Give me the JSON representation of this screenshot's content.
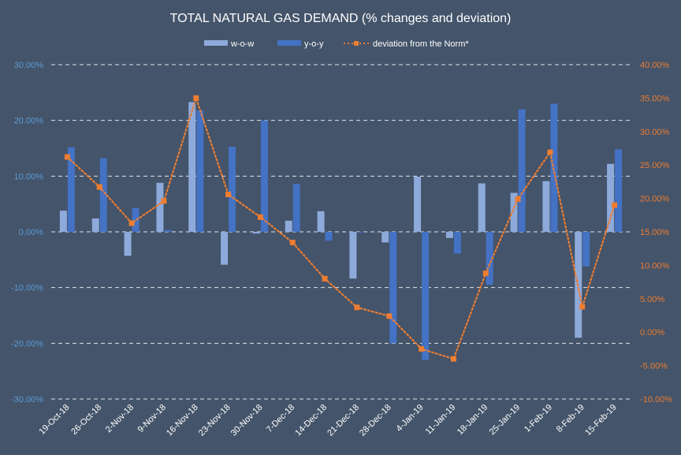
{
  "chart_data": {
    "type": "bar",
    "title": "TOTAL NATURAL GAS DEMAND (% changes and deviation)",
    "categories": [
      "19-Oct-18",
      "26-Oct-18",
      "2-Nov-18",
      "9-Nov-18",
      "16-Nov-18",
      "23-Nov-18",
      "30-Nov-18",
      "7-Dec-18",
      "14-Dec-18",
      "21-Dec-18",
      "28-Dec-18",
      "4-Jan-19",
      "11-Jan-19",
      "18-Jan-19",
      "25-Jan-19",
      "1-Feb-19",
      "8-Feb-19",
      "15-Feb-19"
    ],
    "series": [
      {
        "name": "w-o-w",
        "type": "bar",
        "axis": "left",
        "color": "#8eaadb",
        "values": [
          3.8,
          2.4,
          -4.3,
          8.8,
          23.3,
          -5.9,
          -0.3,
          2.0,
          3.7,
          -8.4,
          -1.9,
          9.9,
          -1.1,
          8.7,
          7.0,
          9.1,
          -19.0,
          12.2
        ]
      },
      {
        "name": "y-o-y",
        "type": "bar",
        "axis": "left",
        "color": "#4472c4",
        "values": [
          15.2,
          13.2,
          4.3,
          0.3,
          21.8,
          15.3,
          20.0,
          8.6,
          -1.6,
          0.0,
          -20.0,
          -23.0,
          -3.9,
          -9.5,
          22.0,
          23.0,
          -6.2,
          14.8
        ]
      },
      {
        "name": "deviation from the Norm*",
        "type": "line",
        "axis": "right",
        "color": "#ed7d31",
        "values": [
          26.2,
          21.7,
          16.3,
          19.6,
          35.0,
          20.6,
          17.2,
          13.4,
          8.0,
          3.7,
          2.4,
          -2.5,
          -4.0,
          8.8,
          19.9,
          26.9,
          3.8,
          19.0
        ]
      }
    ],
    "left_axis": {
      "ylim": [
        -30,
        30
      ],
      "ticks": [
        "30.00%",
        "20.00%",
        "10.00%",
        "0.00%",
        "-10.00%",
        "-20.00%",
        "-30.00%"
      ],
      "color": "#5b9bd5"
    },
    "right_axis": {
      "ylim": [
        -10,
        40
      ],
      "ticks": [
        "40.00%",
        "35.00%",
        "30.00%",
        "25.00%",
        "20.00%",
        "15.00%",
        "10.00%",
        "5.00%",
        "0.00%",
        "-5.00%",
        "-10.00%"
      ],
      "color": "#ed7d31"
    },
    "grid": true,
    "legend_position": "top"
  },
  "legend": {
    "items": [
      {
        "label": "w-o-w"
      },
      {
        "label": "y-o-y"
      },
      {
        "label": "deviation from the Norm*"
      }
    ]
  }
}
